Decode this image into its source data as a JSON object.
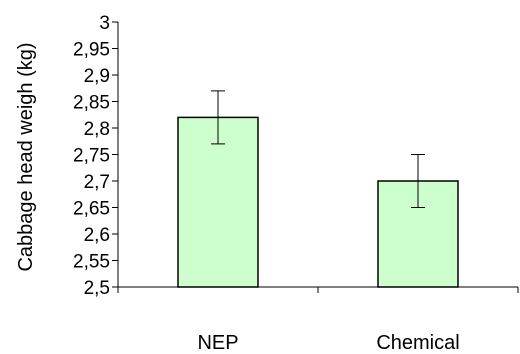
{
  "chart_data": {
    "type": "bar",
    "categories": [
      "NEP",
      "Chemical"
    ],
    "values": [
      2.82,
      2.7
    ],
    "errors": [
      0.05,
      0.05
    ],
    "ylabel": "Cabbage head weigh  (kg)",
    "xlabel": "",
    "ylim": [
      2.5,
      3
    ],
    "yticks": [
      2.5,
      2.55,
      2.6,
      2.65,
      2.7,
      2.75,
      2.8,
      2.85,
      2.9,
      2.95,
      3
    ],
    "ytick_labels": [
      "2,5",
      "2,55",
      "2,6",
      "2,65",
      "2,7",
      "2,75",
      "2,8",
      "2,85",
      "2,9",
      "2,95",
      "3"
    ],
    "grid": false,
    "legend": "none",
    "bar_fill": "#ccffcc",
    "bar_stroke": "#000000"
  }
}
